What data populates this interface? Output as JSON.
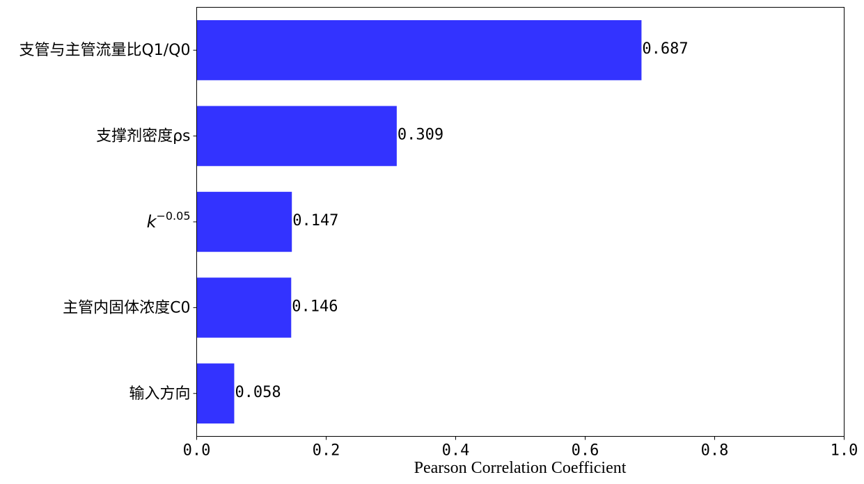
{
  "chart_data": {
    "type": "bar",
    "orientation": "horizontal",
    "title": "",
    "xlabel": "Pearson Correlation Coefficient",
    "ylabel": "",
    "xlim": [
      0,
      1.0
    ],
    "xticks": [
      "0.0",
      "0.2",
      "0.4",
      "0.6",
      "0.8",
      "1.0"
    ],
    "categories": [
      {
        "label": "支管与主管流量比Q1/Q0"
      },
      {
        "label": "支撑剂密度ρs"
      },
      {
        "label": "k",
        "superscript": "−0.05"
      },
      {
        "label": "主管内固体浓度C0"
      },
      {
        "label": "输入方向"
      }
    ],
    "values": [
      0.687,
      0.309,
      0.147,
      0.146,
      0.058
    ],
    "value_labels": [
      "0.687",
      "0.309",
      "0.147",
      "0.146",
      "0.058"
    ],
    "bar_color": "#3333ff",
    "grid": false,
    "legend": "none"
  }
}
